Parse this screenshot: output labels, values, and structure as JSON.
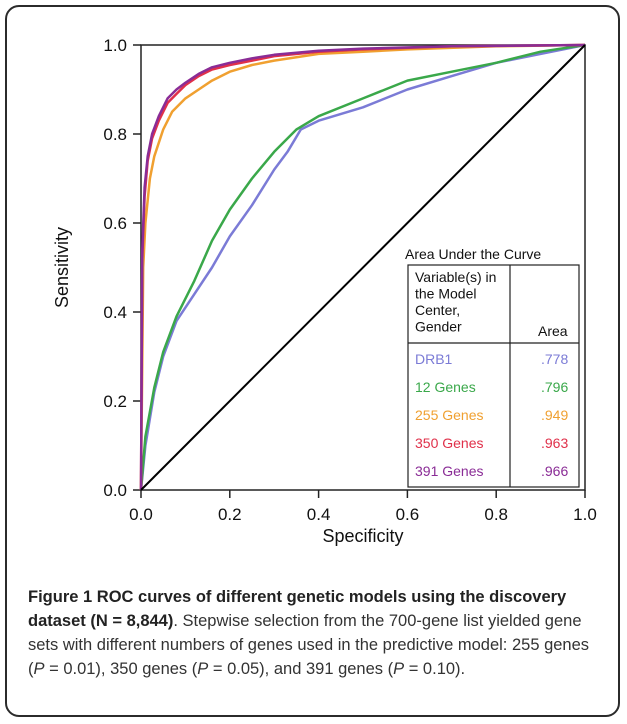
{
  "chart_data": {
    "type": "line",
    "xlabel": "Specificity",
    "ylabel": "Sensitivity",
    "xlim": [
      0.0,
      1.0
    ],
    "ylim": [
      0.0,
      1.0
    ],
    "x_ticks": [
      "0.0",
      "0.2",
      "0.4",
      "0.6",
      "0.8",
      "1.0"
    ],
    "y_ticks": [
      "0.0",
      "0.2",
      "0.4",
      "0.6",
      "0.8",
      "1.0"
    ],
    "legend": {
      "title": "Area Under the Curve",
      "header_variable": [
        "Variable(s) in",
        "the Model",
        "Center,",
        "Gender"
      ],
      "header_area": "Area",
      "placement": "lower-right"
    },
    "series": [
      {
        "name": "DRB1",
        "area": ".778",
        "color": "#7b7bd6",
        "x": [
          0,
          0.01,
          0.03,
          0.05,
          0.08,
          0.12,
          0.16,
          0.2,
          0.25,
          0.3,
          0.33,
          0.36,
          0.4,
          0.5,
          0.6,
          0.7,
          0.8,
          0.9,
          1.0
        ],
        "y": [
          0,
          0.1,
          0.22,
          0.3,
          0.38,
          0.44,
          0.5,
          0.57,
          0.64,
          0.72,
          0.76,
          0.81,
          0.83,
          0.86,
          0.9,
          0.93,
          0.96,
          0.98,
          1.0
        ]
      },
      {
        "name": "12 Genes",
        "area": ".796",
        "color": "#3aa84a",
        "x": [
          0,
          0.01,
          0.03,
          0.05,
          0.08,
          0.12,
          0.16,
          0.2,
          0.25,
          0.3,
          0.35,
          0.4,
          0.5,
          0.6,
          0.7,
          0.8,
          0.9,
          1.0
        ],
        "y": [
          0,
          0.12,
          0.23,
          0.31,
          0.39,
          0.47,
          0.56,
          0.63,
          0.7,
          0.76,
          0.81,
          0.84,
          0.88,
          0.92,
          0.94,
          0.96,
          0.985,
          1.0
        ]
      },
      {
        "name": "255 Genes",
        "area": ".949",
        "color": "#f0a030",
        "x": [
          0,
          0.005,
          0.01,
          0.02,
          0.03,
          0.05,
          0.07,
          0.1,
          0.13,
          0.16,
          0.2,
          0.25,
          0.3,
          0.4,
          0.5,
          0.6,
          0.8,
          1.0
        ],
        "y": [
          0,
          0.5,
          0.6,
          0.7,
          0.75,
          0.81,
          0.85,
          0.88,
          0.9,
          0.92,
          0.94,
          0.955,
          0.965,
          0.98,
          0.985,
          0.99,
          0.997,
          1.0
        ]
      },
      {
        "name": "350 Genes",
        "area": ".963",
        "color": "#e0304a",
        "x": [
          0,
          0.003,
          0.008,
          0.015,
          0.025,
          0.04,
          0.06,
          0.08,
          0.1,
          0.13,
          0.16,
          0.2,
          0.25,
          0.3,
          0.4,
          0.5,
          0.7,
          1.0
        ],
        "y": [
          0,
          0.52,
          0.66,
          0.74,
          0.79,
          0.83,
          0.87,
          0.89,
          0.91,
          0.93,
          0.945,
          0.955,
          0.965,
          0.975,
          0.985,
          0.99,
          0.997,
          1.0
        ]
      },
      {
        "name": "391 Genes",
        "area": ".966",
        "color": "#8a2c96",
        "x": [
          0,
          0.003,
          0.008,
          0.015,
          0.025,
          0.04,
          0.06,
          0.08,
          0.1,
          0.13,
          0.16,
          0.2,
          0.25,
          0.3,
          0.4,
          0.5,
          0.7,
          1.0
        ],
        "y": [
          0,
          0.54,
          0.68,
          0.75,
          0.8,
          0.84,
          0.88,
          0.9,
          0.915,
          0.935,
          0.95,
          0.96,
          0.97,
          0.978,
          0.987,
          0.992,
          0.997,
          1.0
        ]
      },
      {
        "name": "",
        "area": "",
        "color": "#000000",
        "reference": true,
        "x": [
          0,
          1
        ],
        "y": [
          0,
          1
        ]
      }
    ]
  },
  "caption": {
    "label": "Figure 1",
    "title": "ROC curves of different genetic models using the discovery dataset (N = 8,844)",
    "text_1": ". Stepwise selection from the 700-gene list yielded gene sets with different numbers of genes used in the predictive model: 255 genes (",
    "p1_var": "P",
    "p1_val": " = 0.01), 350 genes (",
    "p2_var": "P",
    "p2_val": " = 0.05), and 391 genes (",
    "p3_var": "P",
    "p3_val": " = 0.10)."
  }
}
